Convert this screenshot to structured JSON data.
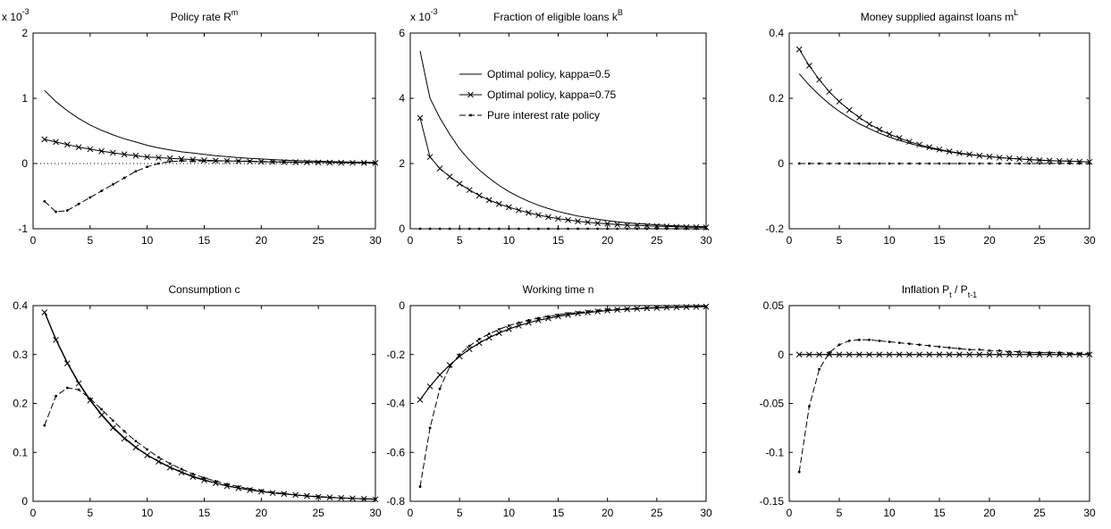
{
  "chart_data": [
    {
      "type": "line",
      "title": "Policy rate R",
      "title_sup": "m",
      "multiplier": "x 10",
      "multiplier_exp": "-3",
      "xlim": [
        0,
        30
      ],
      "ylim": [
        -1,
        2
      ],
      "xticks": [
        "0",
        "5",
        "10",
        "15",
        "20",
        "25",
        "30"
      ],
      "yticks": [
        "-1",
        "0",
        "1",
        "2"
      ],
      "ytick_values": [
        -1,
        0,
        1,
        2
      ],
      "zero_line": true,
      "x": [
        1,
        2,
        3,
        4,
        5,
        6,
        7,
        8,
        9,
        10,
        11,
        12,
        13,
        14,
        15,
        16,
        17,
        18,
        19,
        20,
        21,
        22,
        23,
        24,
        25,
        26,
        27,
        28,
        29,
        30
      ],
      "series": [
        {
          "style": "solid",
          "values": [
            1.12,
            0.95,
            0.81,
            0.69,
            0.59,
            0.51,
            0.44,
            0.38,
            0.33,
            0.28,
            0.24,
            0.21,
            0.18,
            0.16,
            0.14,
            0.12,
            0.105,
            0.09,
            0.08,
            0.07,
            0.06,
            0.052,
            0.045,
            0.04,
            0.035,
            0.03,
            0.026,
            0.022,
            0.02,
            0.017
          ]
        },
        {
          "style": "x-marker",
          "values": [
            0.37,
            0.33,
            0.29,
            0.25,
            0.22,
            0.19,
            0.165,
            0.14,
            0.12,
            0.1,
            0.09,
            0.08,
            0.07,
            0.06,
            0.05,
            0.045,
            0.04,
            0.035,
            0.03,
            0.028,
            0.025,
            0.022,
            0.02,
            0.018,
            0.016,
            0.014,
            0.012,
            0.011,
            0.01,
            0.009
          ]
        },
        {
          "style": "dash-dot",
          "values": [
            -0.58,
            -0.74,
            -0.72,
            -0.62,
            -0.52,
            -0.42,
            -0.32,
            -0.22,
            -0.12,
            -0.05,
            0.0,
            0.03,
            0.04,
            0.04,
            0.04,
            0.04,
            0.04,
            0.04,
            0.035,
            0.03,
            0.03,
            0.025,
            0.02,
            0.02,
            0.018,
            0.015,
            0.013,
            0.012,
            0.01,
            0.01
          ]
        }
      ]
    },
    {
      "type": "line",
      "title": "Fraction of eligible loans k",
      "title_sup": "B",
      "multiplier": "x 10",
      "multiplier_exp": "-3",
      "xlim": [
        0,
        30
      ],
      "ylim": [
        0,
        6
      ],
      "xticks": [
        "0",
        "5",
        "10",
        "15",
        "20",
        "25",
        "30"
      ],
      "yticks": [
        "0",
        "2",
        "4",
        "6"
      ],
      "ytick_values": [
        0,
        2,
        4,
        6
      ],
      "zero_line": false,
      "legend": {
        "placement": "top-right",
        "entries": [
          {
            "label": "Optimal policy, kappa=0.5",
            "style": "solid"
          },
          {
            "label": "Optimal policy, kappa=0.75",
            "style": "x-marker"
          },
          {
            "label": "Pure interest rate policy",
            "style": "dash-dot"
          }
        ]
      },
      "x": [
        1,
        2,
        3,
        4,
        5,
        6,
        7,
        8,
        9,
        10,
        11,
        12,
        13,
        14,
        15,
        16,
        17,
        18,
        19,
        20,
        21,
        22,
        23,
        24,
        25,
        26,
        27,
        28,
        29,
        30
      ],
      "series": [
        {
          "style": "solid",
          "values": [
            5.45,
            4.0,
            3.4,
            2.9,
            2.45,
            2.1,
            1.8,
            1.55,
            1.33,
            1.14,
            0.98,
            0.84,
            0.72,
            0.62,
            0.53,
            0.46,
            0.39,
            0.34,
            0.29,
            0.25,
            0.21,
            0.18,
            0.16,
            0.14,
            0.12,
            0.1,
            0.09,
            0.08,
            0.07,
            0.06
          ]
        },
        {
          "style": "x-marker",
          "values": [
            3.4,
            2.2,
            1.85,
            1.6,
            1.38,
            1.19,
            1.02,
            0.88,
            0.76,
            0.66,
            0.57,
            0.49,
            0.42,
            0.36,
            0.31,
            0.27,
            0.23,
            0.2,
            0.17,
            0.15,
            0.13,
            0.11,
            0.1,
            0.09,
            0.08,
            0.07,
            0.06,
            0.05,
            0.05,
            0.04
          ]
        },
        {
          "style": "dash-dot",
          "values": [
            0,
            0,
            0,
            0,
            0,
            0,
            0,
            0,
            0,
            0,
            0,
            0,
            0,
            0,
            0,
            0,
            0,
            0,
            0,
            0,
            0,
            0,
            0,
            0,
            0,
            0,
            0,
            0,
            0,
            0
          ]
        }
      ]
    },
    {
      "type": "line",
      "title": "Money supplied against loans m",
      "title_sup": "L",
      "xlim": [
        0,
        30
      ],
      "ylim": [
        -0.2,
        0.4
      ],
      "xticks": [
        "0",
        "5",
        "10",
        "15",
        "20",
        "25",
        "30"
      ],
      "yticks": [
        "-0.2",
        "0",
        "0.2",
        "0.4"
      ],
      "ytick_values": [
        -0.2,
        0,
        0.2,
        0.4
      ],
      "zero_line": false,
      "x": [
        1,
        2,
        3,
        4,
        5,
        6,
        7,
        8,
        9,
        10,
        11,
        12,
        13,
        14,
        15,
        16,
        17,
        18,
        19,
        20,
        21,
        22,
        23,
        24,
        25,
        26,
        27,
        28,
        29,
        30
      ],
      "series": [
        {
          "style": "solid",
          "values": [
            0.275,
            0.24,
            0.21,
            0.183,
            0.16,
            0.14,
            0.122,
            0.107,
            0.093,
            0.081,
            0.071,
            0.062,
            0.054,
            0.047,
            0.041,
            0.036,
            0.031,
            0.027,
            0.024,
            0.021,
            0.018,
            0.016,
            0.014,
            0.012,
            0.011,
            0.009,
            0.008,
            0.007,
            0.006,
            0.005
          ]
        },
        {
          "style": "x-marker",
          "values": [
            0.35,
            0.3,
            0.257,
            0.22,
            0.19,
            0.164,
            0.141,
            0.121,
            0.104,
            0.09,
            0.078,
            0.067,
            0.058,
            0.05,
            0.043,
            0.037,
            0.032,
            0.028,
            0.024,
            0.021,
            0.018,
            0.016,
            0.014,
            0.012,
            0.01,
            0.009,
            0.008,
            0.007,
            0.006,
            0.005
          ]
        },
        {
          "style": "dash-dot",
          "values": [
            0,
            0,
            0,
            0,
            0,
            0,
            0,
            0,
            0,
            0,
            0,
            0,
            0,
            0,
            0,
            0,
            0,
            0,
            0,
            0,
            0,
            0,
            0,
            0,
            0,
            0,
            0,
            0,
            0,
            0
          ]
        }
      ]
    },
    {
      "type": "line",
      "title": "Consumption c",
      "xlim": [
        0,
        30
      ],
      "ylim": [
        0,
        0.4
      ],
      "xticks": [
        "0",
        "5",
        "10",
        "15",
        "20",
        "25",
        "30"
      ],
      "yticks": [
        "0",
        "0.1",
        "0.2",
        "0.3",
        "0.4"
      ],
      "ytick_values": [
        0,
        0.1,
        0.2,
        0.3,
        0.4
      ],
      "zero_line": false,
      "x": [
        1,
        2,
        3,
        4,
        5,
        6,
        7,
        8,
        9,
        10,
        11,
        12,
        13,
        14,
        15,
        16,
        17,
        18,
        19,
        20,
        21,
        22,
        23,
        24,
        25,
        26,
        27,
        28,
        29,
        30
      ],
      "series": [
        {
          "style": "solid",
          "values": [
            0.388,
            0.332,
            0.284,
            0.243,
            0.208,
            0.178,
            0.152,
            0.13,
            0.111,
            0.095,
            0.082,
            0.07,
            0.06,
            0.051,
            0.044,
            0.037,
            0.032,
            0.027,
            0.023,
            0.02,
            0.017,
            0.015,
            0.013,
            0.011,
            0.009,
            0.008,
            0.007,
            0.006,
            0.005,
            0.004
          ]
        },
        {
          "style": "x-marker",
          "values": [
            0.386,
            0.33,
            0.282,
            0.241,
            0.206,
            0.176,
            0.15,
            0.128,
            0.11,
            0.094,
            0.081,
            0.069,
            0.059,
            0.05,
            0.043,
            0.037,
            0.031,
            0.027,
            0.023,
            0.02,
            0.017,
            0.015,
            0.013,
            0.011,
            0.009,
            0.008,
            0.007,
            0.006,
            0.005,
            0.004
          ]
        },
        {
          "style": "dash-dot",
          "values": [
            0.155,
            0.215,
            0.232,
            0.228,
            0.21,
            0.188,
            0.165,
            0.143,
            0.123,
            0.106,
            0.09,
            0.077,
            0.066,
            0.056,
            0.048,
            0.041,
            0.035,
            0.03,
            0.025,
            0.022,
            0.018,
            0.016,
            0.013,
            0.011,
            0.01,
            0.008,
            0.007,
            0.006,
            0.005,
            0.005
          ]
        }
      ]
    },
    {
      "type": "line",
      "title": "Working time n",
      "xlim": [
        0,
        30
      ],
      "ylim": [
        -0.8,
        0
      ],
      "xticks": [
        "0",
        "5",
        "10",
        "15",
        "20",
        "25",
        "30"
      ],
      "yticks": [
        "-0.8",
        "-0.6",
        "-0.4",
        "-0.2",
        "0"
      ],
      "ytick_values": [
        -0.8,
        -0.6,
        -0.4,
        -0.2,
        0
      ],
      "zero_line": false,
      "x": [
        1,
        2,
        3,
        4,
        5,
        6,
        7,
        8,
        9,
        10,
        11,
        12,
        13,
        14,
        15,
        16,
        17,
        18,
        19,
        20,
        21,
        22,
        23,
        24,
        25,
        26,
        27,
        28,
        29,
        30
      ],
      "series": [
        {
          "style": "solid",
          "values": [
            -0.385,
            -0.33,
            -0.283,
            -0.243,
            -0.208,
            -0.178,
            -0.153,
            -0.131,
            -0.112,
            -0.096,
            -0.082,
            -0.07,
            -0.06,
            -0.052,
            -0.044,
            -0.038,
            -0.032,
            -0.028,
            -0.024,
            -0.02,
            -0.017,
            -0.015,
            -0.013,
            -0.011,
            -0.009,
            -0.008,
            -0.007,
            -0.006,
            -0.005,
            -0.004
          ]
        },
        {
          "style": "x-marker",
          "values": [
            -0.385,
            -0.33,
            -0.283,
            -0.243,
            -0.208,
            -0.178,
            -0.153,
            -0.131,
            -0.112,
            -0.096,
            -0.082,
            -0.07,
            -0.06,
            -0.052,
            -0.044,
            -0.038,
            -0.032,
            -0.028,
            -0.024,
            -0.02,
            -0.017,
            -0.015,
            -0.013,
            -0.011,
            -0.009,
            -0.008,
            -0.007,
            -0.006,
            -0.005,
            -0.004
          ]
        },
        {
          "style": "dash-dot",
          "values": [
            -0.74,
            -0.5,
            -0.34,
            -0.25,
            -0.2,
            -0.165,
            -0.137,
            -0.115,
            -0.097,
            -0.082,
            -0.07,
            -0.06,
            -0.051,
            -0.044,
            -0.038,
            -0.032,
            -0.028,
            -0.024,
            -0.02,
            -0.017,
            -0.015,
            -0.013,
            -0.011,
            -0.009,
            -0.008,
            -0.007,
            -0.006,
            -0.005,
            -0.004,
            -0.004
          ]
        }
      ]
    },
    {
      "type": "line",
      "title": "Inflation P",
      "title_sub1": "t",
      "title_mid": " / P",
      "title_sub2": "t-1",
      "xlim": [
        0,
        30
      ],
      "ylim": [
        -0.15,
        0.05
      ],
      "xticks": [
        "0",
        "5",
        "10",
        "15",
        "20",
        "25",
        "30"
      ],
      "yticks": [
        "-0.15",
        "-0.1",
        "-0.05",
        "0",
        "0.05"
      ],
      "ytick_values": [
        -0.15,
        -0.1,
        -0.05,
        0,
        0.05
      ],
      "zero_line": false,
      "x": [
        1,
        2,
        3,
        4,
        5,
        6,
        7,
        8,
        9,
        10,
        11,
        12,
        13,
        14,
        15,
        16,
        17,
        18,
        19,
        20,
        21,
        22,
        23,
        24,
        25,
        26,
        27,
        28,
        29,
        30
      ],
      "series": [
        {
          "style": "solid",
          "values": [
            0,
            0,
            0,
            0,
            0,
            0,
            0,
            0,
            0,
            0,
            0,
            0,
            0,
            0,
            0,
            0,
            0,
            0,
            0,
            0,
            0,
            0,
            0,
            0,
            0,
            0,
            0,
            0,
            0,
            0
          ]
        },
        {
          "style": "x-marker",
          "values": [
            0,
            0,
            0,
            0,
            0,
            0,
            0,
            0,
            0,
            0,
            0,
            0,
            0,
            0,
            0,
            0,
            0,
            0,
            0,
            0,
            0,
            0,
            0,
            0,
            0,
            0,
            0,
            0,
            0,
            0
          ]
        },
        {
          "style": "dash-dot",
          "values": [
            -0.12,
            -0.053,
            -0.015,
            0.002,
            0.01,
            0.014,
            0.015,
            0.015,
            0.014,
            0.013,
            0.012,
            0.011,
            0.01,
            0.009,
            0.008,
            0.007,
            0.006,
            0.005,
            0.005,
            0.004,
            0.004,
            0.003,
            0.003,
            0.002,
            0.002,
            0.002,
            0.002,
            0.001,
            0.001,
            0.001
          ]
        }
      ]
    }
  ]
}
